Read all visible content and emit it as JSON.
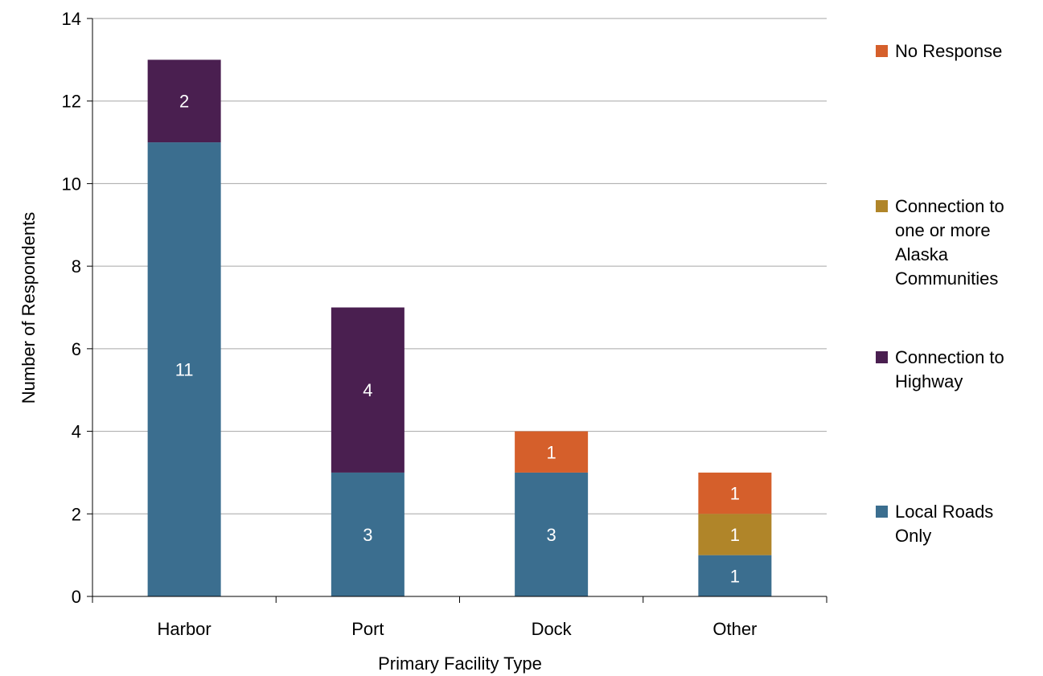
{
  "chart_data": {
    "type": "bar",
    "stacked": true,
    "categories": [
      "Harbor",
      "Port",
      "Dock",
      "Other"
    ],
    "series": [
      {
        "name": "Local Roads Only",
        "color": "#3b6e8f",
        "values": [
          11,
          3,
          3,
          1
        ]
      },
      {
        "name": "Connection to one or more Alaska Communities",
        "color": "#b08529",
        "values": [
          0,
          0,
          0,
          1
        ]
      },
      {
        "name": "Connection to Highway",
        "color": "#4a1f50",
        "values": [
          2,
          4,
          0,
          0
        ]
      },
      {
        "name": "No Response",
        "color": "#d55f2b",
        "values": [
          0,
          0,
          1,
          1
        ]
      }
    ],
    "legend_order": [
      3,
      1,
      2,
      0
    ],
    "legend_lines": [
      [
        "No Response"
      ],
      [
        "Connection to",
        "one or more",
        "Alaska",
        "Communities"
      ],
      [
        "Connection to",
        "Highway"
      ],
      [
        "Local Roads",
        "Only"
      ]
    ],
    "xlabel": "Primary Facility Type",
    "ylabel": "Number of Respondents",
    "ylim": [
      0,
      14
    ],
    "yticks": [
      0,
      2,
      4,
      6,
      8,
      10,
      12,
      14
    ],
    "grid": true,
    "legend_position": "right"
  }
}
